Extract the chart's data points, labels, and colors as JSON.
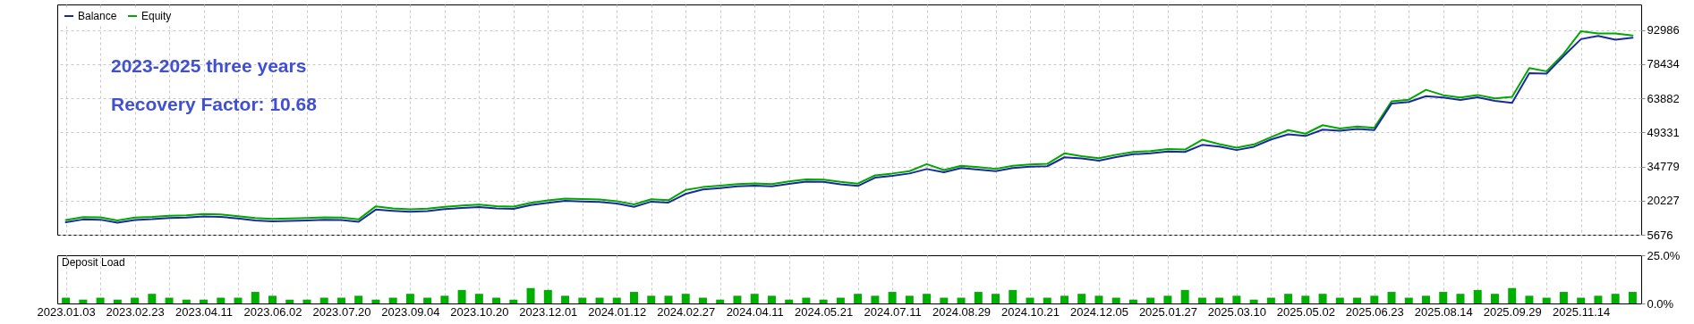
{
  "chart_data": [
    {
      "type": "line",
      "legend": "top left",
      "grid": true,
      "tick_labels": "y",
      "line_style": "solid",
      "marker": "none",
      "annotations": [
        "2023-2025 three years",
        "Recovery Factor:  10.68"
      ],
      "ylim": [
        5676,
        103900
      ],
      "yticks": [
        5676,
        20227,
        34779,
        49331,
        63882,
        78434,
        92986
      ],
      "categories": [
        "2023.01.03",
        null,
        null,
        null,
        "2023.02.23",
        null,
        null,
        null,
        "2023.04.11",
        null,
        null,
        null,
        "2023.06.02",
        null,
        null,
        null,
        "2023.07.20",
        null,
        null,
        null,
        "2023.09.04",
        null,
        null,
        null,
        "2023.10.20",
        null,
        null,
        null,
        "2023.12.01",
        null,
        null,
        null,
        "2024.01.12",
        null,
        null,
        null,
        "2024.02.27",
        null,
        null,
        null,
        "2024.04.11",
        null,
        null,
        null,
        "2024.05.21",
        null,
        null,
        null,
        "2024.07.11",
        null,
        null,
        null,
        "2024.08.29",
        null,
        null,
        null,
        "2024.10.21",
        null,
        null,
        null,
        "2024.12.05",
        null,
        null,
        null,
        "2025.01.27",
        null,
        null,
        null,
        "2025.03.10",
        null,
        null,
        null,
        "2025.05.02",
        null,
        null,
        null,
        "2025.06.23",
        null,
        null,
        null,
        "2025.08.14",
        null,
        null,
        null,
        "2025.09.29",
        null,
        null,
        null,
        "2025.11.14",
        null,
        null,
        null
      ],
      "series": [
        {
          "name": "Balance",
          "color": "#1a2a9c",
          "values": [
            11000,
            12200,
            12100,
            10800,
            12000,
            12300,
            12800,
            13000,
            13500,
            13300,
            12600,
            11800,
            11400,
            11600,
            11800,
            12100,
            12000,
            11200,
            16400,
            15900,
            15500,
            15800,
            16600,
            17100,
            17500,
            16900,
            16700,
            18300,
            19300,
            20100,
            19900,
            19700,
            19000,
            17600,
            19800,
            19400,
            23100,
            25000,
            25600,
            26300,
            26600,
            26300,
            27400,
            28300,
            28200,
            27200,
            26500,
            30000,
            30800,
            31800,
            33700,
            32300,
            34100,
            33500,
            32800,
            34100,
            34700,
            34900,
            38700,
            38200,
            37300,
            38800,
            40000,
            40400,
            41200,
            41000,
            44000,
            43300,
            41800,
            43200,
            46300,
            48500,
            47800,
            50500,
            50000,
            50800,
            50300,
            61600,
            62300,
            64800,
            64200,
            63200,
            64300,
            62800,
            61900,
            74600,
            74400,
            81900,
            89100,
            90500,
            88900,
            89700
          ]
        },
        {
          "name": "Equity",
          "color": "#00a800",
          "values": [
            12000,
            13200,
            13100,
            11800,
            13000,
            13300,
            13800,
            14000,
            14500,
            14300,
            13600,
            12800,
            12400,
            12600,
            12800,
            13100,
            13000,
            12200,
            17800,
            16900,
            16500,
            16800,
            17600,
            18100,
            18500,
            17900,
            17700,
            19300,
            20300,
            21100,
            20900,
            20700,
            20000,
            18600,
            20800,
            20400,
            24800,
            26000,
            26600,
            27300,
            27600,
            27300,
            28400,
            29300,
            29200,
            28200,
            27500,
            31000,
            31800,
            32800,
            35800,
            33300,
            35100,
            34500,
            33800,
            35100,
            35700,
            35900,
            40400,
            39200,
            38300,
            39800,
            41000,
            41400,
            42200,
            42000,
            46200,
            44300,
            42800,
            44200,
            47300,
            50300,
            48800,
            52400,
            51000,
            51800,
            51300,
            62600,
            63300,
            67500,
            65200,
            64200,
            65300,
            63800,
            64500,
            76800,
            75400,
            82900,
            92500,
            91500,
            91500,
            90700
          ]
        }
      ]
    },
    {
      "type": "bar",
      "title": "Deposit Load",
      "grid": "x",
      "ylim": [
        0,
        25
      ],
      "yticks": [
        {
          "value": 0,
          "label": "0.0%"
        },
        {
          "value": 25,
          "label": "25.0%"
        }
      ],
      "categories": [
        "2023.01.03",
        null,
        null,
        null,
        "2023.02.23",
        null,
        null,
        null,
        "2023.04.11",
        null,
        null,
        null,
        "2023.06.02",
        null,
        null,
        null,
        "2023.07.20",
        null,
        null,
        null,
        "2023.09.04",
        null,
        null,
        null,
        "2023.10.20",
        null,
        null,
        null,
        "2023.12.01",
        null,
        null,
        null,
        "2024.01.12",
        null,
        null,
        null,
        "2024.02.27",
        null,
        null,
        null,
        "2024.04.11",
        null,
        null,
        null,
        "2024.05.21",
        null,
        null,
        null,
        "2024.07.11",
        null,
        null,
        null,
        "2024.08.29",
        null,
        null,
        null,
        "2024.10.21",
        null,
        null,
        null,
        "2024.12.05",
        null,
        null,
        null,
        "2025.01.27",
        null,
        null,
        null,
        "2025.03.10",
        null,
        null,
        null,
        "2025.05.02",
        null,
        null,
        null,
        "2025.06.23",
        null,
        null,
        null,
        "2025.08.14",
        null,
        null,
        null,
        "2025.09.29",
        null,
        null,
        null,
        "2025.11.14",
        null,
        null,
        null
      ],
      "series": [
        {
          "color": "#00b000",
          "values": [
            3,
            2,
            3,
            2,
            3,
            5,
            3,
            2,
            2,
            3,
            3,
            6,
            4,
            2,
            2,
            3,
            3,
            4,
            2,
            3,
            5,
            3,
            4,
            7,
            5,
            3,
            2,
            8,
            7,
            4,
            3,
            3,
            3,
            6,
            4,
            4,
            5,
            3,
            2,
            4,
            5,
            4,
            2,
            3,
            2,
            3,
            5,
            4,
            6,
            4,
            5,
            3,
            3,
            6,
            5,
            7,
            3,
            3,
            4,
            5,
            4,
            3,
            2,
            3,
            4,
            7,
            3,
            3,
            4,
            2,
            3,
            5,
            4,
            5,
            3,
            3,
            4,
            6,
            3,
            4,
            6,
            5,
            7,
            5,
            8,
            4,
            3,
            6,
            3,
            4,
            5,
            6
          ]
        }
      ]
    }
  ]
}
